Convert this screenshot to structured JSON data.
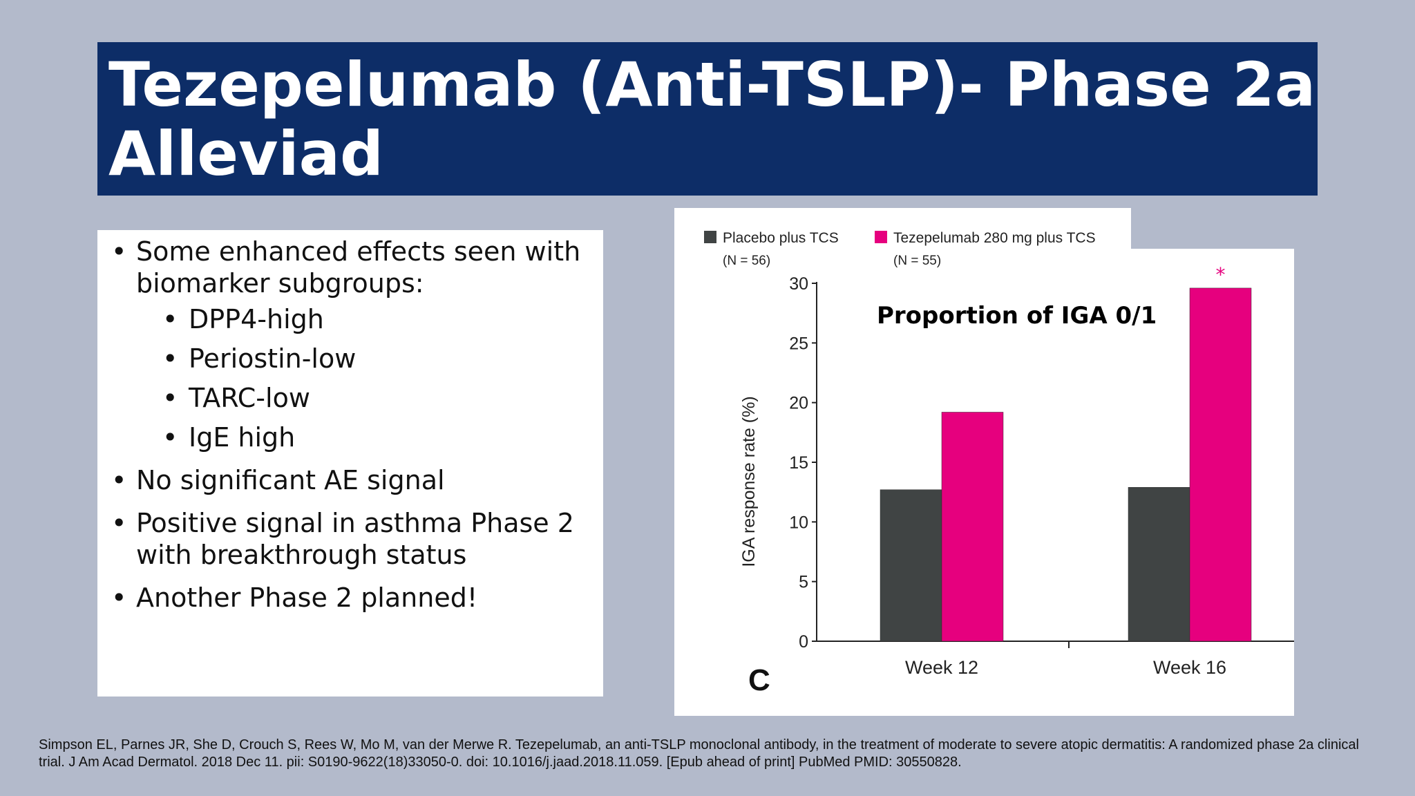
{
  "slide": {
    "title_line1": "Tezepelumab (Anti-TSLP)- Phase 2a",
    "title_line2": "Alleviad"
  },
  "bullets": {
    "b1": "Some enhanced effects seen with biomarker subgroups:",
    "sub": [
      "DPP4-high",
      "Periostin-low",
      "TARC-low",
      "IgE high"
    ],
    "b2": "No significant AE signal",
    "b3": "Positive signal in asthma Phase 2 with breakthrough status",
    "b4": "Another Phase 2 planned!"
  },
  "chart_data": {
    "type": "bar",
    "title": "Proportion of IGA 0/1",
    "panel_label": "C",
    "categories": [
      "Week 12",
      "Week 16"
    ],
    "series": [
      {
        "name": "Placebo plus TCS",
        "n_label": "(N = 56)",
        "color": "#404444",
        "values": [
          12.7,
          12.9
        ]
      },
      {
        "name": "Tezepelumab 280 mg plus TCS",
        "n_label": "(N = 55)",
        "color": "#e6007e",
        "values": [
          19.2,
          29.6
        ]
      }
    ],
    "significance": [
      {
        "category": "Week 16",
        "series": "Tezepelumab 280 mg plus TCS",
        "mark": "*"
      }
    ],
    "ylabel": "IGA response rate (%)",
    "xlabel": "",
    "ylim": [
      0,
      30
    ],
    "yticks": [
      0,
      5,
      10,
      15,
      20,
      25,
      30
    ]
  },
  "citation": "Simpson EL, Parnes JR, She D, Crouch S, Rees W, Mo M, van der Merwe R. Tezepelumab, an anti-TSLP monoclonal antibody, in the treatment of moderate to severe atopic dermatitis: A randomized phase 2a clinical trial. J Am Acad Dermatol. 2018 Dec 11. pii: S0190-9622(18)33050-0. doi: 10.1016/j.jaad.2018.11.059. [Epub ahead of print] PubMed PMID: 30550828."
}
